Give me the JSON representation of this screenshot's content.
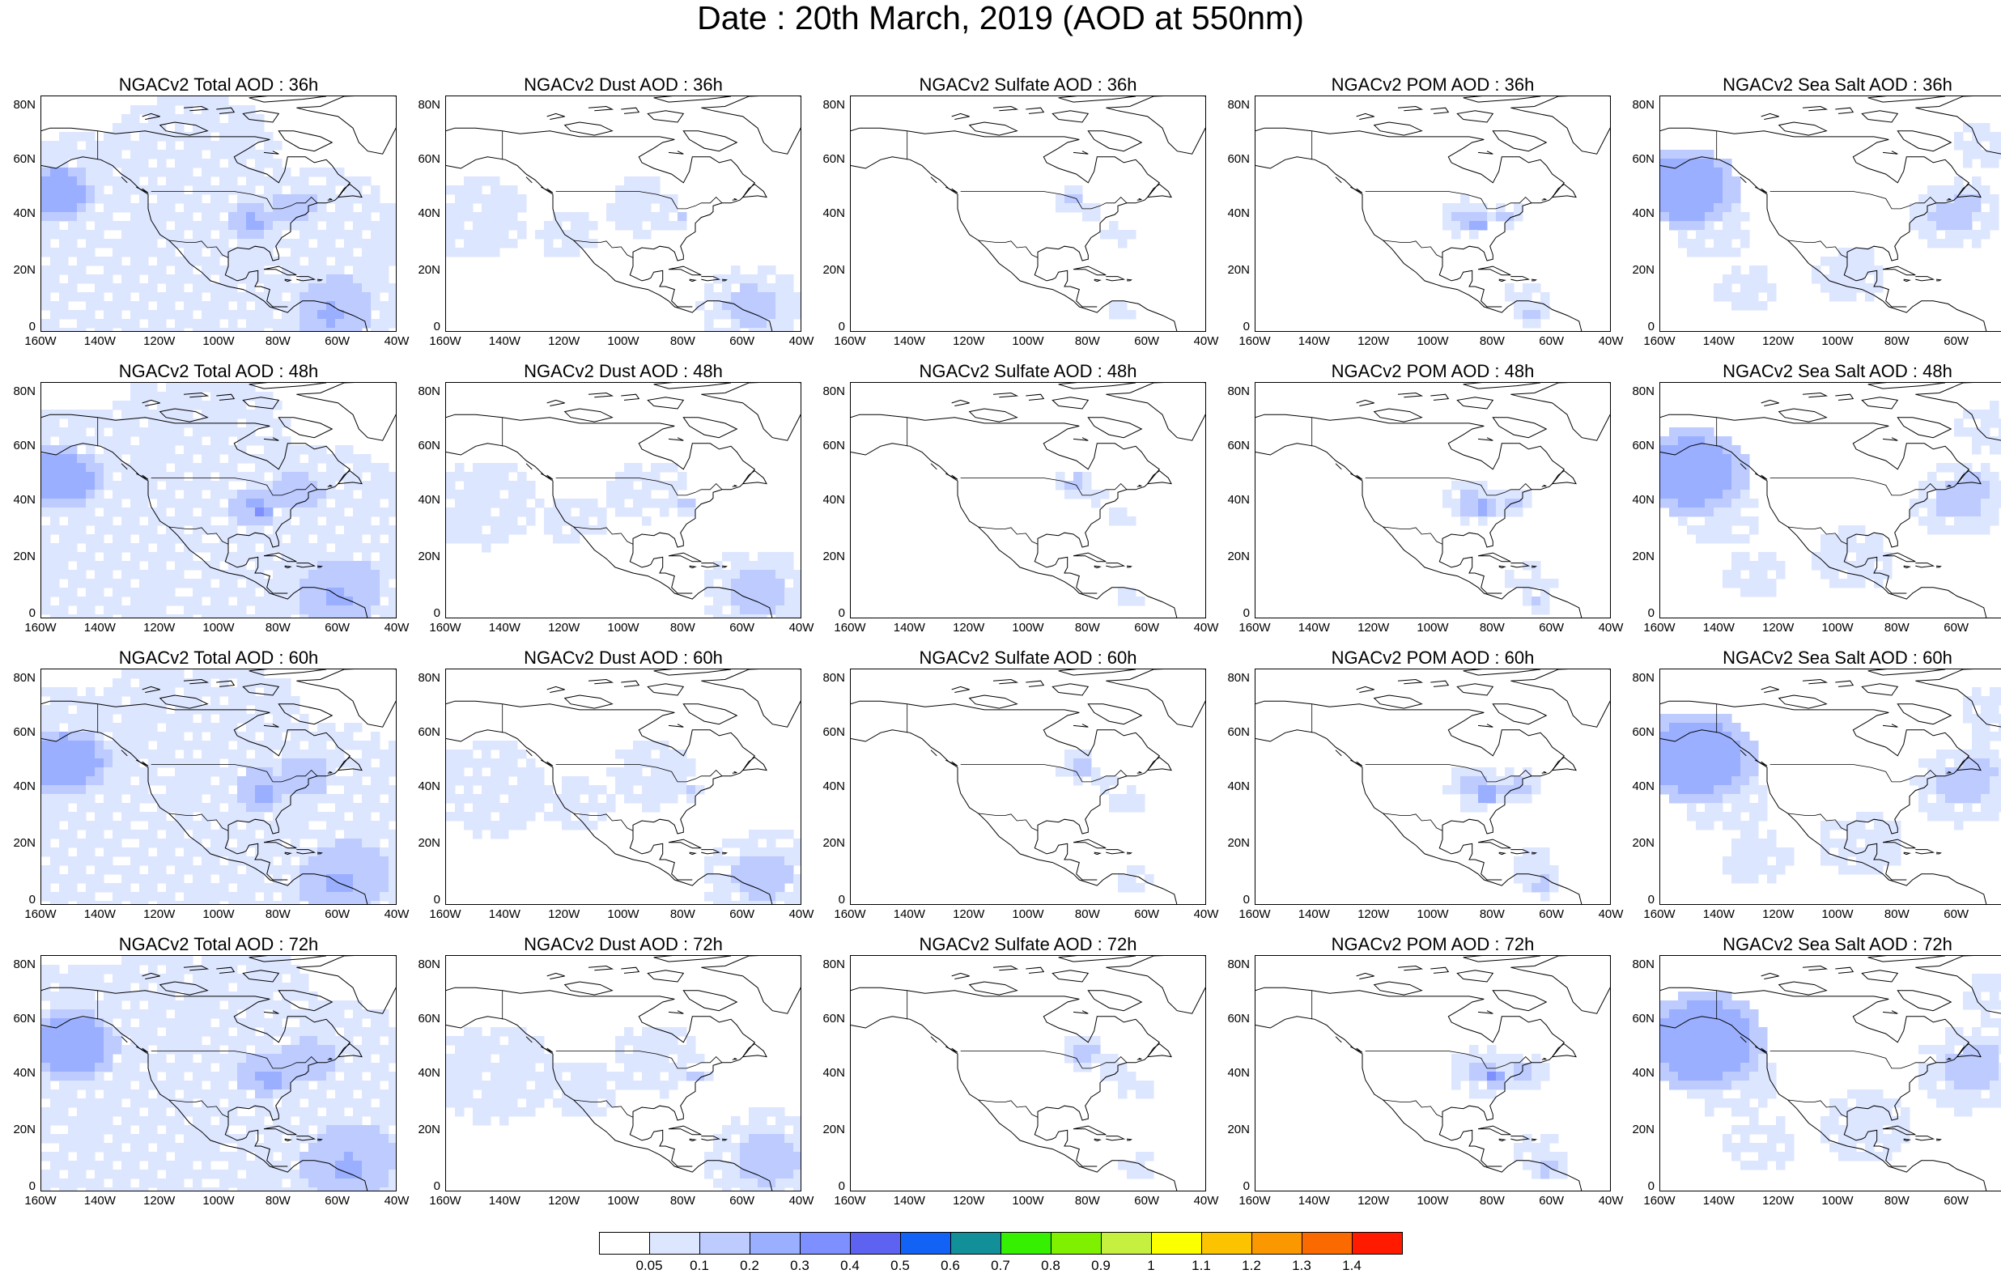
{
  "title": "Date : 20th March, 2019 (AOD at 550nm)",
  "lat_ticks": [
    "80N",
    "60N",
    "40N",
    "20N",
    "0"
  ],
  "lon_ticks": [
    "160W",
    "140W",
    "120W",
    "100W",
    "80W",
    "60W",
    "40W"
  ],
  "colors": {
    "background": "#ffffff",
    "coast": "#000000",
    "scale": [
      "#ffffff",
      "#dde6ff",
      "#bdcbff",
      "#9aafff",
      "#7e8fff",
      "#5d62f0",
      "#1263f5",
      "#129099",
      "#35f000",
      "#7ef000",
      "#c6f040",
      "#fcff00",
      "#fbc300",
      "#fb9800",
      "#fb6a00",
      "#ff1a00"
    ]
  },
  "legend": {
    "labels": [
      "0.05",
      "0.1",
      "0.2",
      "0.3",
      "0.4",
      "0.5",
      "0.6",
      "0.7",
      "0.8",
      "0.9",
      "1",
      "1.1",
      "1.2",
      "1.3",
      "1.4"
    ]
  },
  "panels": [
    {
      "title": "NGACv2 Total AOD : 36h",
      "type": "total"
    },
    {
      "title": "NGACv2 Dust AOD : 36h",
      "type": "dust"
    },
    {
      "title": "NGACv2 Sulfate AOD : 36h",
      "type": "sulfate"
    },
    {
      "title": "NGACv2 POM AOD : 36h",
      "type": "pom"
    },
    {
      "title": "NGACv2 Sea Salt AOD : 36h",
      "type": "seasalt"
    },
    {
      "title": "NGACv2 Total AOD : 48h",
      "type": "total"
    },
    {
      "title": "NGACv2 Dust AOD : 48h",
      "type": "dust"
    },
    {
      "title": "NGACv2 Sulfate AOD : 48h",
      "type": "sulfate"
    },
    {
      "title": "NGACv2 POM AOD : 48h",
      "type": "pom"
    },
    {
      "title": "NGACv2 Sea Salt AOD : 48h",
      "type": "seasalt"
    },
    {
      "title": "NGACv2 Total AOD : 60h",
      "type": "total"
    },
    {
      "title": "NGACv2 Dust AOD : 60h",
      "type": "dust"
    },
    {
      "title": "NGACv2 Sulfate AOD : 60h",
      "type": "sulfate"
    },
    {
      "title": "NGACv2 POM AOD : 60h",
      "type": "pom"
    },
    {
      "title": "NGACv2 Sea Salt AOD : 60h",
      "type": "seasalt"
    },
    {
      "title": "NGACv2 Total AOD : 72h",
      "type": "total"
    },
    {
      "title": "NGACv2 Dust AOD : 72h",
      "type": "dust"
    },
    {
      "title": "NGACv2 Sulfate AOD : 72h",
      "type": "sulfate"
    },
    {
      "title": "NGACv2 POM AOD : 72h",
      "type": "pom"
    },
    {
      "title": "NGACv2 Sea Salt  AOD : 72h",
      "type": "seasalt"
    }
  ]
}
